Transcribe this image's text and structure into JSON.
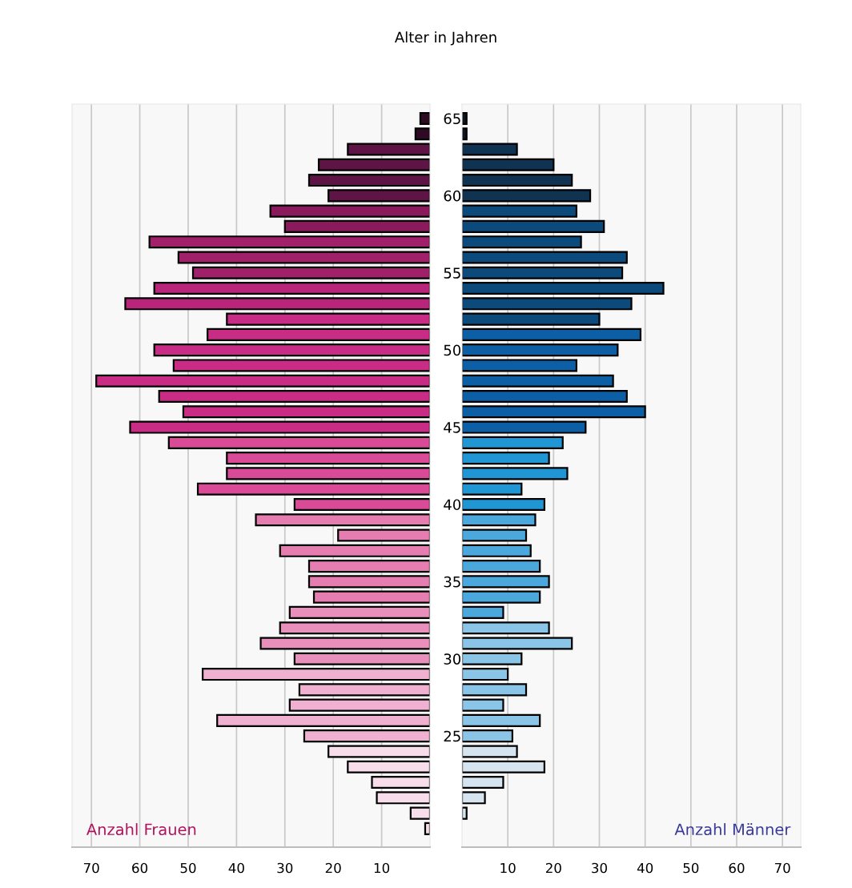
{
  "chart_data": [
    {
      "type": "bar",
      "orientation": "horizontal",
      "title": "Alter in Jahren",
      "xlabel": "Anzahl Frauen",
      "categories": [
        "65",
        null,
        null,
        null,
        null,
        "60",
        null,
        null,
        null,
        null,
        "55",
        null,
        null,
        null,
        null,
        "50",
        null,
        null,
        null,
        null,
        "45",
        null,
        null,
        null,
        null,
        "40",
        null,
        null,
        null,
        null,
        "35",
        null,
        null,
        null,
        null,
        "30",
        null,
        null,
        null,
        null,
        "25",
        null,
        null,
        null,
        null,
        null,
        null
      ],
      "values": [
        2,
        3,
        17,
        23,
        25,
        21,
        33,
        30,
        58,
        52,
        49,
        57,
        63,
        42,
        46,
        57,
        53,
        69,
        56,
        51,
        62,
        54,
        42,
        42,
        48,
        28,
        36,
        19,
        31,
        25,
        25,
        24,
        29,
        31,
        35,
        28,
        47,
        27,
        29,
        44,
        26,
        21,
        17,
        12,
        11,
        4,
        1
      ],
      "colors": [
        "#2e0b22",
        "#2e0b22",
        "#5e1445",
        "#5e1445",
        "#5e1445",
        "#5e1445",
        "#8a1a5c",
        "#8a1a5c",
        "#a0206a",
        "#a0206a",
        "#a0206a",
        "#b8257a",
        "#b8257a",
        "#c92c85",
        "#c92c85",
        "#c92c85",
        "#c92c85",
        "#c92c85",
        "#c92c85",
        "#c92c85",
        "#c92c85",
        "#d94b97",
        "#d94b97",
        "#d94b97",
        "#d94b97",
        "#d94b97",
        "#e57db0",
        "#e57db0",
        "#e57db0",
        "#e57db0",
        "#e57db0",
        "#e57db0",
        "#e98fbb",
        "#e98fbb",
        "#e98fbb",
        "#e98fbb",
        "#f0b0cf",
        "#f0b0cf",
        "#f0b0cf",
        "#f0b0cf",
        "#f0b0cf",
        "#f6dde9",
        "#f6dde9",
        "#f6dde9",
        "#f6dde9",
        "#f6dde9",
        "#f6dde9"
      ],
      "xlim": [
        74,
        0
      ],
      "xticks": [
        70,
        60,
        50,
        40,
        30,
        20,
        10
      ],
      "grid": "x",
      "legend": false
    },
    {
      "type": "bar",
      "orientation": "horizontal",
      "xlabel": "Anzahl Männer",
      "categories": [
        "65",
        null,
        null,
        null,
        null,
        "60",
        null,
        null,
        null,
        null,
        "55",
        null,
        null,
        null,
        null,
        "50",
        null,
        null,
        null,
        null,
        "45",
        null,
        null,
        null,
        null,
        "40",
        null,
        null,
        null,
        null,
        "35",
        null,
        null,
        null,
        null,
        "30",
        null,
        null,
        null,
        null,
        "25",
        null,
        null,
        null,
        null,
        null,
        null
      ],
      "values": [
        1,
        1,
        12,
        20,
        24,
        28,
        25,
        31,
        26,
        36,
        35,
        44,
        37,
        30,
        39,
        34,
        25,
        33,
        36,
        40,
        27,
        22,
        19,
        23,
        13,
        18,
        16,
        14,
        15,
        17,
        19,
        17,
        9,
        19,
        24,
        13,
        10,
        14,
        9,
        17,
        11,
        12,
        18,
        9,
        5,
        1,
        null
      ],
      "colors": [
        "#0b1622",
        "#0b1622",
        "#0f3350",
        "#0f3350",
        "#0f3350",
        "#0f3350",
        "#0d4a7c",
        "#0d4a7c",
        "#0d4a7c",
        "#0d4a7c",
        "#0d4a7c",
        "#0d4a7c",
        "#0d4a7c",
        "#0d4a7c",
        "#0d5fa5",
        "#0d5fa5",
        "#0d5fa5",
        "#0d5fa5",
        "#0d5fa5",
        "#0d5fa5",
        "#0d5fa5",
        "#2196d5",
        "#2196d5",
        "#2196d5",
        "#2196d5",
        "#2196d5",
        "#4aa8dc",
        "#4aa8dc",
        "#4aa8dc",
        "#4aa8dc",
        "#4aa8dc",
        "#4aa8dc",
        "#4aa8dc",
        "#8ac4e6",
        "#8ac4e6",
        "#8ac4e6",
        "#8ac4e6",
        "#8ac4e6",
        "#8ac4e6",
        "#8ac4e6",
        "#8ac4e6",
        "#d5e4ee",
        "#d5e4ee",
        "#d5e4ee",
        "#d5e4ee",
        "#d5e4ee",
        "#d5e4ee"
      ],
      "xlim": [
        0,
        74
      ],
      "xticks": [
        10,
        20,
        30,
        40,
        50,
        60,
        70
      ],
      "grid": "x",
      "legend": false,
      "tick_labels": "x"
    }
  ]
}
